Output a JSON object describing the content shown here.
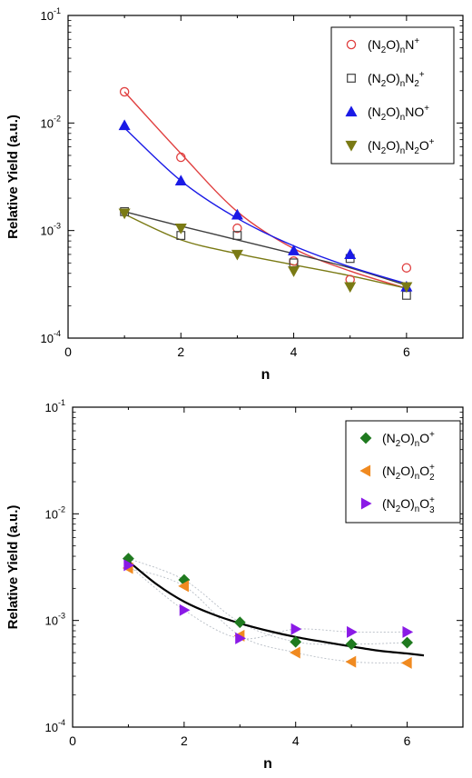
{
  "chart_data": [
    {
      "type": "scatter",
      "xlabel": "n",
      "ylabel": "Relative Yield  (a.u.)",
      "xlim": [
        0,
        7
      ],
      "ylim": [
        0.0001,
        0.1
      ],
      "yscale": "log",
      "x_ticks": [
        "0",
        "2",
        "4",
        "6"
      ],
      "y_ticks": [
        {
          "base": "10",
          "exp": "-4"
        },
        {
          "base": "10",
          "exp": "-3"
        },
        {
          "base": "10",
          "exp": "-2"
        },
        {
          "base": "10",
          "exp": "-1"
        }
      ],
      "legend_position": "top-right",
      "series": [
        {
          "label_parts": [
            "(N",
            "2",
            "O)",
            "n",
            "N",
            "+"
          ],
          "label_roles": [
            "t",
            "sub",
            "t",
            "sub",
            "t",
            "sup"
          ],
          "marker": "circle-open",
          "color": "#e04040",
          "x": [
            1,
            2,
            3,
            4,
            5,
            6
          ],
          "y": [
            0.0195,
            0.0048,
            0.00105,
            0.00052,
            0.00035,
            0.00045
          ],
          "fit": [
            0.0195,
            0.0052,
            0.0015,
            0.00068,
            0.00042,
            0.00029
          ]
        },
        {
          "label_parts": [
            "(N",
            "2",
            "O)",
            "n",
            "N",
            "2",
            "+"
          ],
          "label_roles": [
            "t",
            "sub",
            "t",
            "sub",
            "t",
            "sub",
            "sup"
          ],
          "marker": "square-open",
          "color": "#404040",
          "x": [
            1,
            2,
            3,
            4,
            5,
            6
          ],
          "y": [
            0.0015,
            0.0009,
            0.0009,
            0.0005,
            0.00055,
            0.00025
          ],
          "fit": [
            0.0015,
            0.0011,
            0.00082,
            0.00061,
            0.00045,
            0.00031
          ]
        },
        {
          "label_parts": [
            "(N",
            "2",
            "O)",
            "n",
            "NO",
            "+"
          ],
          "label_roles": [
            "t",
            "sub",
            "t",
            "sub",
            "t",
            "sup"
          ],
          "marker": "triangle-up",
          "color": "#1a1ae6",
          "x": [
            1,
            2,
            3,
            4,
            5,
            6
          ],
          "y": [
            0.0095,
            0.0029,
            0.0014,
            0.00065,
            0.0006,
            0.0003
          ],
          "fit": [
            0.009,
            0.0029,
            0.0013,
            0.00072,
            0.00046,
            0.00032
          ]
        },
        {
          "label_parts": [
            "(N",
            "2",
            "O)",
            "n",
            "N",
            "2",
            "O",
            "+"
          ],
          "label_roles": [
            "t",
            "sub",
            "t",
            "sub",
            "t",
            "sub",
            "t",
            "sup"
          ],
          "marker": "triangle-down",
          "color": "#7a7a14",
          "x": [
            1,
            2,
            3,
            4,
            5,
            6
          ],
          "y": [
            0.00145,
            0.00105,
            0.0006,
            0.00042,
            0.0003,
            0.0003
          ],
          "fit": [
            0.00142,
            0.00082,
            0.00061,
            0.00048,
            0.00038,
            0.00029
          ]
        }
      ]
    },
    {
      "type": "scatter",
      "xlabel": "n",
      "ylabel": "Relative Yield  (a.u.)",
      "xlim": [
        0,
        7
      ],
      "ylim": [
        0.0001,
        0.1
      ],
      "yscale": "log",
      "x_ticks": [
        "0",
        "2",
        "4",
        "6"
      ],
      "y_ticks": [
        {
          "base": "10",
          "exp": "-4"
        },
        {
          "base": "10",
          "exp": "-3"
        },
        {
          "base": "10",
          "exp": "-2"
        },
        {
          "base": "10",
          "exp": "-1"
        }
      ],
      "legend_position": "top-right",
      "series": [
        {
          "label_parts": [
            "(N",
            "2",
            "O)",
            "n",
            "O",
            "+"
          ],
          "label_roles": [
            "t",
            "sub",
            "t",
            "sub",
            "t",
            "sup"
          ],
          "marker": "diamond",
          "color": "#1f7a1f",
          "x": [
            1,
            2,
            3,
            4,
            5,
            6
          ],
          "y": [
            0.0038,
            0.0024,
            0.00096,
            0.00063,
            0.0006,
            0.00062
          ]
        },
        {
          "label_parts": [
            "(N",
            "2",
            "O)",
            "n",
            "O",
            "+2"
          ],
          "label_roles": [
            "t",
            "sub",
            "t",
            "sub",
            "t",
            "supsub"
          ],
          "marker": "triangle-left",
          "color": "#f08a20",
          "x": [
            1,
            2,
            3,
            4,
            5,
            6
          ],
          "y": [
            0.0031,
            0.0021,
            0.00072,
            0.0005,
            0.00041,
            0.0004
          ]
        },
        {
          "label_parts": [
            "(N",
            "2",
            "O)",
            "n",
            "O",
            "+3"
          ],
          "label_roles": [
            "t",
            "sub",
            "t",
            "sub",
            "t",
            "supsub"
          ],
          "marker": "triangle-right",
          "color": "#8a1ae6",
          "x": [
            1,
            2,
            3,
            4,
            5,
            6
          ],
          "y": [
            0.0033,
            0.00125,
            0.00068,
            0.00083,
            0.00078,
            0.00078
          ]
        }
      ],
      "fit_curve": {
        "color": "#000000",
        "x": [
          1,
          1.5,
          2,
          2.5,
          3,
          3.5,
          4,
          4.5,
          5,
          5.5,
          6,
          6.3
        ],
        "y": [
          0.0036,
          0.0022,
          0.0015,
          0.00115,
          0.00094,
          0.0008,
          0.0007,
          0.00063,
          0.00057,
          0.00052,
          0.00049,
          0.00047
        ]
      }
    }
  ]
}
